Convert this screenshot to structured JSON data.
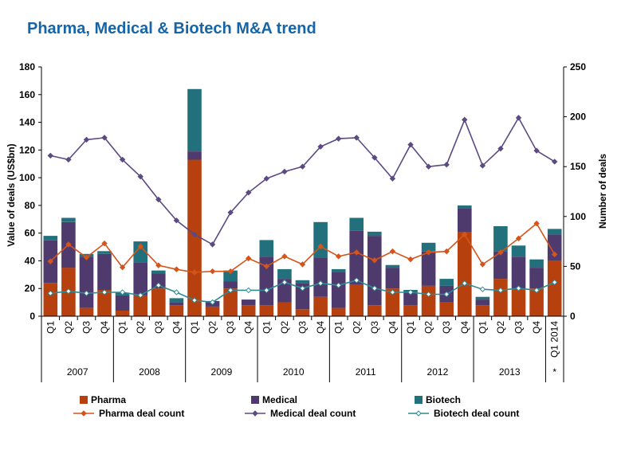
{
  "page": {
    "title": "Pharma, Medical & Biotech M&A trend"
  },
  "colors": {
    "title": "#1565a8",
    "pharma": "#b7410e",
    "medical": "#4f3a6e",
    "biotech": "#22707c",
    "pharma_line": "#d4541a",
    "medical_line": "#5c4a82",
    "biotech_line": "#2f8a96"
  },
  "chart_data": {
    "type": "bar",
    "stacked": true,
    "title": "Pharma, Medical & Biotech M&A trend",
    "ylabel": "Value of deals (US$bn)",
    "y2label": "Number of deals",
    "ylim": [
      0,
      180
    ],
    "y_ticks": [
      0,
      20,
      40,
      60,
      80,
      100,
      120,
      140,
      160,
      180
    ],
    "y2lim": [
      0,
      250
    ],
    "y2_ticks": [
      0,
      50,
      100,
      150,
      200,
      250
    ],
    "categories": [
      "Q1",
      "Q2",
      "Q3",
      "Q4",
      "Q1",
      "Q2",
      "Q3",
      "Q4",
      "Q1",
      "Q2",
      "Q3",
      "Q4",
      "Q1",
      "Q2",
      "Q3",
      "Q4",
      "Q1",
      "Q2",
      "Q3",
      "Q4",
      "Q1",
      "Q2",
      "Q3",
      "Q4",
      "Q1",
      "Q2",
      "Q3",
      "Q4",
      "Q1 2014"
    ],
    "years": [
      {
        "label": "2007",
        "start": 0,
        "count": 4
      },
      {
        "label": "2008",
        "start": 4,
        "count": 4
      },
      {
        "label": "2009",
        "start": 8,
        "count": 4
      },
      {
        "label": "2010",
        "start": 12,
        "count": 4
      },
      {
        "label": "2011",
        "start": 16,
        "count": 4
      },
      {
        "label": "2012",
        "start": 20,
        "count": 4
      },
      {
        "label": "2013",
        "start": 24,
        "count": 4
      },
      {
        "label": "*",
        "start": 28,
        "count": 1
      }
    ],
    "series": [
      {
        "name": "Pharma",
        "kind": "bar",
        "axis": "left",
        "values": [
          24,
          35,
          6,
          19,
          4,
          15,
          20,
          8,
          113,
          7,
          20,
          8,
          8,
          10,
          5,
          14,
          6,
          23,
          8,
          20,
          8,
          22,
          10,
          61,
          8,
          27,
          19,
          20,
          40
        ]
      },
      {
        "name": "Medical",
        "kind": "bar",
        "axis": "left",
        "values": [
          31,
          33,
          37,
          26,
          11,
          24,
          11,
          2,
          6,
          4,
          5,
          4,
          35,
          17,
          19,
          28,
          26,
          39,
          50,
          15,
          9,
          25,
          12,
          17,
          4,
          20,
          24,
          15,
          19
        ]
      },
      {
        "name": "Biotech",
        "kind": "bar",
        "axis": "left",
        "values": [
          3,
          3,
          2,
          2,
          2,
          15,
          2,
          3,
          45,
          0,
          8,
          0,
          12,
          7,
          2,
          26,
          2,
          9,
          3,
          2,
          2,
          6,
          5,
          2,
          2,
          18,
          8,
          6,
          4
        ]
      },
      {
        "name": "Pharma deal count",
        "kind": "line",
        "axis": "right",
        "values": [
          55,
          72,
          59,
          73,
          49,
          70,
          51,
          47,
          44,
          45,
          45,
          58,
          50,
          60,
          52,
          70,
          60,
          64,
          56,
          65,
          57,
          64,
          65,
          82,
          52,
          64,
          78,
          93,
          62
        ]
      },
      {
        "name": "Medical deal count",
        "kind": "line",
        "axis": "right",
        "values": [
          161,
          157,
          177,
          179,
          157,
          140,
          117,
          96,
          82,
          72,
          104,
          124,
          138,
          145,
          150,
          170,
          178,
          179,
          159,
          138,
          172,
          150,
          152,
          197,
          151,
          168,
          199,
          166,
          155
        ]
      },
      {
        "name": "Biotech deal count",
        "kind": "line",
        "axis": "right",
        "values": [
          23,
          25,
          23,
          24,
          24,
          21,
          31,
          24,
          16,
          14,
          26,
          26,
          26,
          34,
          28,
          33,
          31,
          36,
          28,
          24,
          24,
          22,
          22,
          33,
          27,
          26,
          28,
          26,
          34
        ]
      }
    ],
    "legend": {
      "position": "bottom"
    },
    "grid": false
  }
}
